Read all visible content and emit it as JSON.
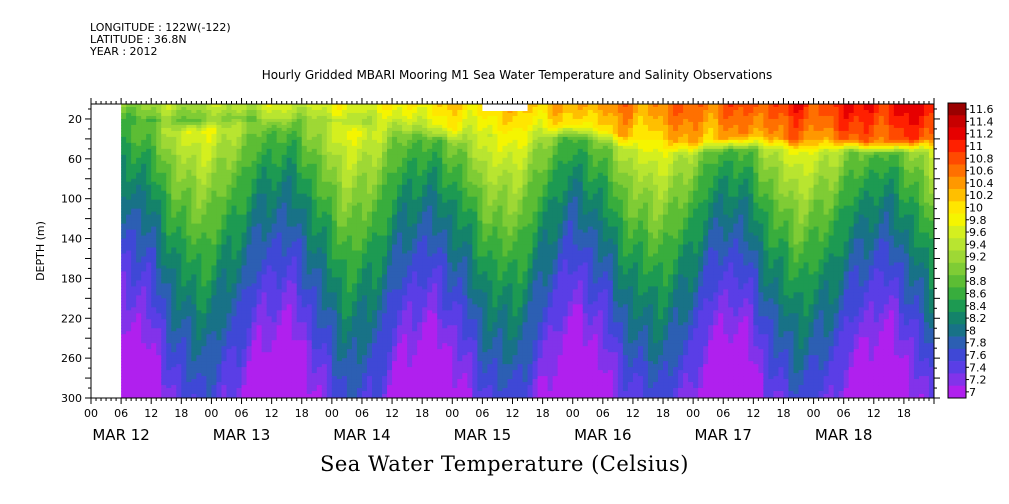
{
  "header": {
    "longitude": "LONGITUDE : 122W(-122)",
    "latitude": "LATITUDE : 36.8N",
    "year": "YEAR : 2012"
  },
  "chart_data": {
    "type": "heatmap",
    "title": "Hourly Gridded MBARI Mooring M1 Sea Water Temperature and Salinity Observations",
    "ylabel": "DEPTH (m)",
    "colorbar_label": "Sea Water Temperature (Celsius)",
    "x_hour_ticks": [
      "00",
      "06",
      "12",
      "18",
      "00",
      "06",
      "12",
      "18",
      "00",
      "06",
      "12",
      "18",
      "00",
      "06",
      "12",
      "18",
      "00",
      "06",
      "12",
      "18",
      "00",
      "06",
      "12",
      "18",
      "00",
      "06",
      "12",
      "18"
    ],
    "x_date_labels": [
      "MAR 12",
      "MAR 13",
      "MAR 14",
      "MAR 15",
      "MAR 16",
      "MAR 17",
      "MAR 18"
    ],
    "x_range_hours": [
      0,
      168
    ],
    "data_start_hour": 6,
    "y_ticks": [
      20,
      60,
      100,
      140,
      180,
      220,
      260,
      300
    ],
    "y_range": [
      5,
      300
    ],
    "y_inverted": true,
    "colorbar_levels": [
      "11.6",
      "11.4",
      "11.2",
      "11",
      "10.8",
      "10.6",
      "10.4",
      "10.2",
      "10",
      "9.8",
      "9.6",
      "9.4",
      "9.2",
      "9",
      "8.8",
      "8.6",
      "8.4",
      "8.2",
      "8",
      "7.8",
      "7.6",
      "7.4",
      "7.2",
      "7"
    ],
    "colorbar_colors": [
      "#9a0000",
      "#c80000",
      "#e60000",
      "#ff2000",
      "#ff4a00",
      "#ff7000",
      "#ff9800",
      "#ffbf00",
      "#ffe600",
      "#f5f500",
      "#d4ef1f",
      "#b8e530",
      "#9ed835",
      "#7fcc35",
      "#5cbd34",
      "#38ad3d",
      "#1d9a52",
      "#14836a",
      "#187287",
      "#2c5fb3",
      "#3f48d6",
      "#5a3ee6",
      "#8233ea",
      "#b020ee"
    ],
    "mixed_layer_depth_m": [
      [
        6,
        20
      ],
      [
        18,
        22
      ],
      [
        30,
        18
      ],
      [
        42,
        20
      ],
      [
        54,
        22
      ],
      [
        60,
        22
      ],
      [
        66,
        28
      ],
      [
        72,
        32
      ],
      [
        78,
        36
      ],
      [
        84,
        34
      ],
      [
        90,
        30
      ],
      [
        96,
        26
      ],
      [
        102,
        32
      ],
      [
        108,
        40
      ],
      [
        114,
        42
      ],
      [
        120,
        44
      ],
      [
        126,
        40
      ],
      [
        132,
        38
      ],
      [
        138,
        40
      ],
      [
        144,
        42
      ],
      [
        150,
        40
      ],
      [
        156,
        44
      ],
      [
        162,
        42
      ],
      [
        168,
        40
      ]
    ],
    "missing_block": {
      "x_hours": [
        78,
        87
      ],
      "depth_m": [
        5,
        12
      ]
    }
  }
}
